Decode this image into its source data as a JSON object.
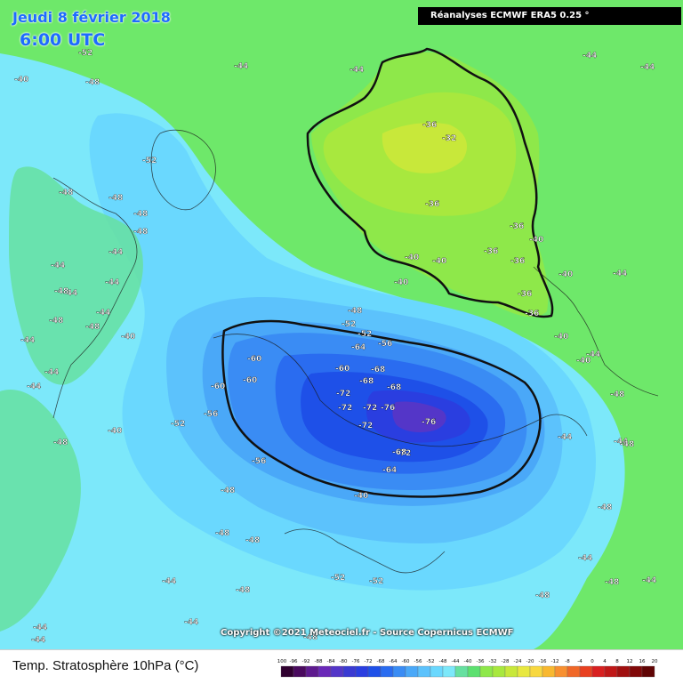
{
  "header": {
    "date": "Jeudi 8 février 2018",
    "time": "6:00 UTC",
    "source": "Réanalyses ECMWF ERA5 0.25 °",
    "copyright": "Copyright ©2021 Meteociel.fr - Source Copernicus ECMWF"
  },
  "footer": {
    "title": "Temp. Stratosphère 10hPa (°C)"
  },
  "legend": {
    "ticks": [
      "-100",
      "-96",
      "-92",
      "-88",
      "-84",
      "-80",
      "-76",
      "-72",
      "-68",
      "-64",
      "-60",
      "-56",
      "-52",
      "-48",
      "-44",
      "-40",
      "-36",
      "-32",
      "-28",
      "-24",
      "-20",
      "-16",
      "-12",
      "-8",
      "-4",
      "0",
      "4",
      "8",
      "12",
      "16",
      "20"
    ],
    "colors": [
      "#300030",
      "#4a0a5e",
      "#5e1a8e",
      "#6a28b8",
      "#5436c8",
      "#3a3ad2",
      "#2a3ee0",
      "#1e50e8",
      "#2a6cf0",
      "#3a8cf4",
      "#4aa8f8",
      "#5cc2fc",
      "#6ad8fe",
      "#7ce8fa",
      "#66e0a0",
      "#5ce070",
      "#8ee84a",
      "#a8e83e",
      "#c8e83a",
      "#e8e840",
      "#f8d840",
      "#f8b830",
      "#f89030",
      "#f06828",
      "#e84020",
      "#d82020",
      "#c01818",
      "#a01010",
      "#800808",
      "#600404"
    ]
  },
  "map": {
    "background_color": "#6ee86a",
    "contour_labels": [
      {
        "text": "-52"
      },
      {
        "text": "-48"
      },
      {
        "text": "-44"
      },
      {
        "text": "-40"
      },
      {
        "text": "-52"
      },
      {
        "text": "-48"
      },
      {
        "text": "-44"
      },
      {
        "text": "-44"
      },
      {
        "text": "-44"
      },
      {
        "text": "-36"
      },
      {
        "text": "-32"
      },
      {
        "text": "-36"
      },
      {
        "text": "-36"
      },
      {
        "text": "-40"
      },
      {
        "text": "-36"
      },
      {
        "text": "-40"
      },
      {
        "text": "-36"
      },
      {
        "text": "-40"
      },
      {
        "text": "-40"
      },
      {
        "text": "-40"
      },
      {
        "text": "-36"
      },
      {
        "text": "-36"
      },
      {
        "text": "-52"
      },
      {
        "text": "-48"
      },
      {
        "text": "-52"
      },
      {
        "text": "-56"
      },
      {
        "text": "-60"
      },
      {
        "text": "-64"
      },
      {
        "text": "-60"
      },
      {
        "text": "-60"
      },
      {
        "text": "-60"
      },
      {
        "text": "-68"
      },
      {
        "text": "-68"
      },
      {
        "text": "-68"
      },
      {
        "text": "-72"
      },
      {
        "text": "-72"
      },
      {
        "text": "-72"
      },
      {
        "text": "-76"
      },
      {
        "text": "-72"
      },
      {
        "text": "-76"
      },
      {
        "text": "-72"
      },
      {
        "text": "-68"
      },
      {
        "text": "-64"
      },
      {
        "text": "-56"
      },
      {
        "text": "-56"
      },
      {
        "text": "-52"
      },
      {
        "text": "-48"
      },
      {
        "text": "-48"
      },
      {
        "text": "-48"
      },
      {
        "text": "-52"
      },
      {
        "text": "-52"
      },
      {
        "text": "-48"
      },
      {
        "text": "-44"
      },
      {
        "text": "-44"
      },
      {
        "text": "-44"
      },
      {
        "text": "-48"
      },
      {
        "text": "-48"
      },
      {
        "text": "-48"
      },
      {
        "text": "-44"
      },
      {
        "text": "-44"
      },
      {
        "text": "-40"
      },
      {
        "text": "-44"
      },
      {
        "text": "-44"
      },
      {
        "text": "-48"
      },
      {
        "text": "-48"
      },
      {
        "text": "-48"
      },
      {
        "text": "-48"
      },
      {
        "text": "-44"
      },
      {
        "text": "-44"
      },
      {
        "text": "-48"
      },
      {
        "text": "-44"
      },
      {
        "text": "-40"
      },
      {
        "text": "-44"
      },
      {
        "text": "-48"
      },
      {
        "text": "-48"
      },
      {
        "text": "-44"
      },
      {
        "text": "-44"
      },
      {
        "text": "-40"
      },
      {
        "text": "-40"
      },
      {
        "text": "-44"
      },
      {
        "text": "-44"
      },
      {
        "text": "-40"
      },
      {
        "text": "-48"
      },
      {
        "text": "-44"
      },
      {
        "text": "-44"
      },
      {
        "text": "-48"
      },
      {
        "text": "-48"
      },
      {
        "text": "-44"
      }
    ]
  }
}
